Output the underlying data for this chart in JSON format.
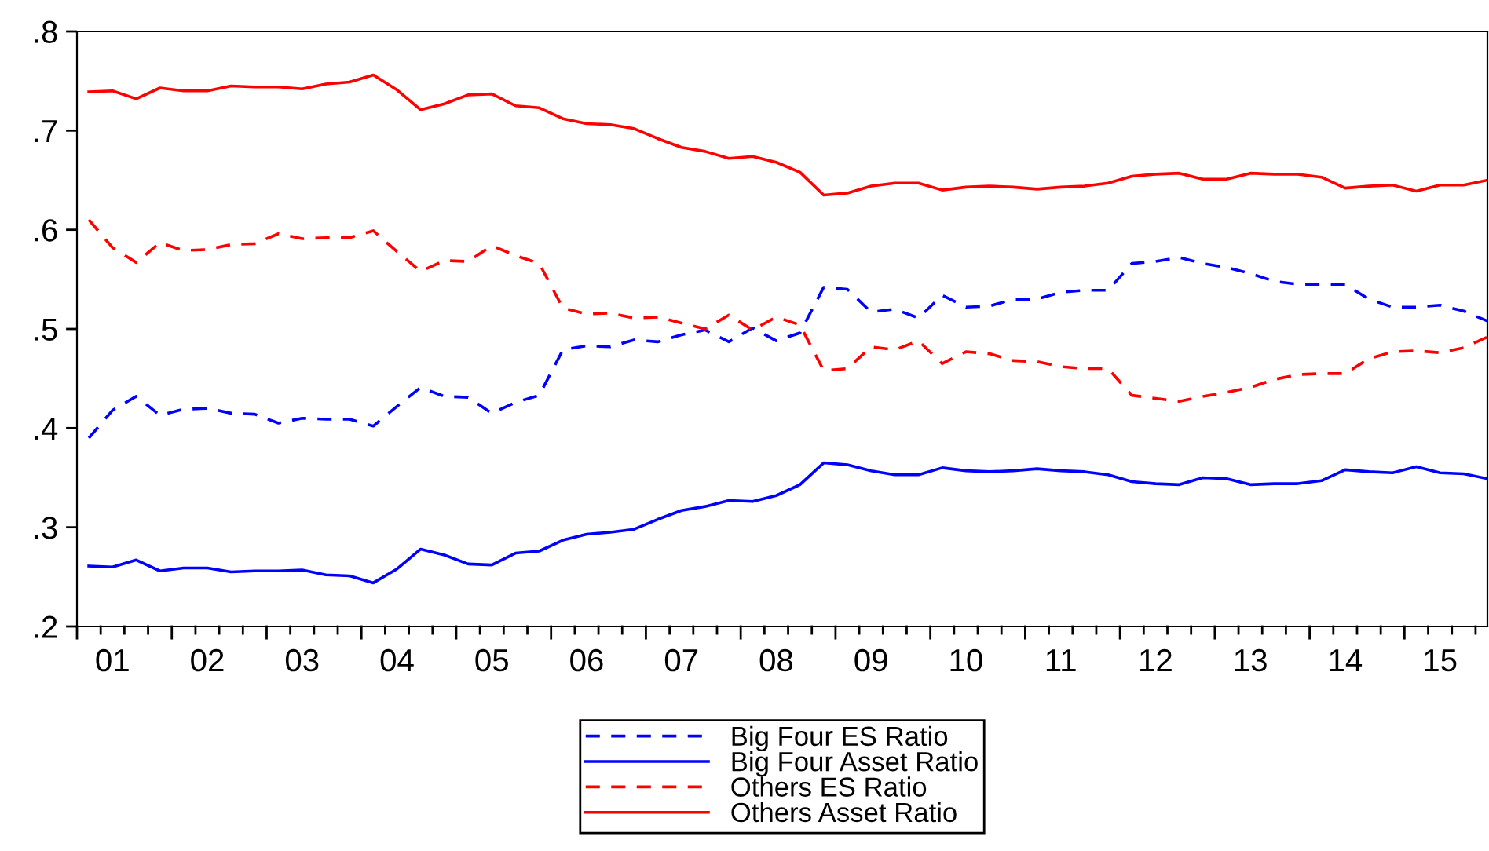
{
  "chart_data": {
    "type": "line",
    "categories": [
      null,
      "01",
      null,
      null,
      null,
      "02",
      null,
      null,
      null,
      "03",
      null,
      null,
      null,
      "04",
      null,
      null,
      null,
      "05",
      null,
      null,
      null,
      "06",
      null,
      null,
      null,
      "07",
      null,
      null,
      null,
      "08",
      null,
      null,
      null,
      "09",
      null,
      null,
      null,
      "10",
      null,
      null,
      null,
      "11",
      null,
      null,
      null,
      "12",
      null,
      null,
      null,
      "13",
      null,
      null,
      null,
      "14",
      null,
      null,
      null,
      "15",
      null,
      null
    ],
    "series": [
      {
        "name": "Big Four ES Ratio",
        "color": "#0000ff",
        "line_style": "dashed",
        "values": [
          0.39,
          0.418,
          0.432,
          0.413,
          0.419,
          0.42,
          0.415,
          0.414,
          0.405,
          0.41,
          0.409,
          0.409,
          0.402,
          0.422,
          0.441,
          0.432,
          0.431,
          0.415,
          0.426,
          0.433,
          0.479,
          0.483,
          0.482,
          0.489,
          0.487,
          0.494,
          0.499,
          0.487,
          0.501,
          0.488,
          0.496,
          0.542,
          0.54,
          0.517,
          0.52,
          0.511,
          0.534,
          0.522,
          0.523,
          0.53,
          0.53,
          0.537,
          0.539,
          0.539,
          0.566,
          0.568,
          0.572,
          0.566,
          0.562,
          0.556,
          0.548,
          0.545,
          0.545,
          0.545,
          0.53,
          0.522,
          0.522,
          0.524,
          0.518,
          0.508
        ]
      },
      {
        "name": "Big Four Asset Ratio",
        "color": "#0000ff",
        "line_style": "solid",
        "values": [
          0.261,
          0.26,
          0.267,
          0.256,
          0.259,
          0.259,
          0.255,
          0.256,
          0.256,
          0.257,
          0.252,
          0.251,
          0.244,
          0.258,
          0.278,
          0.272,
          0.263,
          0.262,
          0.274,
          0.276,
          0.287,
          0.293,
          0.295,
          0.298,
          0.308,
          0.317,
          0.321,
          0.327,
          0.326,
          0.332,
          0.343,
          0.365,
          0.363,
          0.357,
          0.353,
          0.353,
          0.36,
          0.357,
          0.356,
          0.357,
          0.359,
          0.357,
          0.356,
          0.353,
          0.346,
          0.344,
          0.343,
          0.35,
          0.349,
          0.343,
          0.344,
          0.344,
          0.347,
          0.358,
          0.356,
          0.355,
          0.361,
          0.355,
          0.354,
          0.349
        ]
      },
      {
        "name": "Others ES Ratio",
        "color": "#ff0000",
        "line_style": "dashed",
        "values": [
          0.61,
          0.582,
          0.567,
          0.587,
          0.579,
          0.58,
          0.585,
          0.586,
          0.596,
          0.591,
          0.592,
          0.592,
          0.599,
          0.578,
          0.558,
          0.569,
          0.568,
          0.584,
          0.574,
          0.566,
          0.521,
          0.515,
          0.516,
          0.511,
          0.512,
          0.506,
          0.5,
          0.514,
          0.499,
          0.512,
          0.504,
          0.458,
          0.46,
          0.482,
          0.479,
          0.488,
          0.465,
          0.477,
          0.475,
          0.468,
          0.467,
          0.462,
          0.46,
          0.46,
          0.433,
          0.43,
          0.427,
          0.432,
          0.436,
          0.441,
          0.449,
          0.454,
          0.455,
          0.455,
          0.47,
          0.477,
          0.478,
          0.476,
          0.481,
          0.492
        ]
      },
      {
        "name": "Others Asset Ratio",
        "color": "#ff0000",
        "line_style": "solid",
        "values": [
          0.739,
          0.74,
          0.732,
          0.743,
          0.74,
          0.74,
          0.745,
          0.744,
          0.744,
          0.742,
          0.747,
          0.749,
          0.756,
          0.741,
          0.721,
          0.727,
          0.736,
          0.737,
          0.725,
          0.723,
          0.712,
          0.707,
          0.706,
          0.702,
          0.692,
          0.683,
          0.679,
          0.672,
          0.674,
          0.668,
          0.658,
          0.635,
          0.637,
          0.644,
          0.647,
          0.647,
          0.64,
          0.643,
          0.644,
          0.643,
          0.641,
          0.643,
          0.644,
          0.647,
          0.654,
          0.656,
          0.657,
          0.651,
          0.651,
          0.657,
          0.656,
          0.656,
          0.653,
          0.642,
          0.644,
          0.645,
          0.639,
          0.645,
          0.645,
          0.65
        ]
      }
    ],
    "ylim": [
      0.2,
      0.8
    ],
    "yticks": [
      {
        "value": 0.2,
        "label": ".2"
      },
      {
        "value": 0.3,
        "label": ".3"
      },
      {
        "value": 0.4,
        "label": ".4"
      },
      {
        "value": 0.5,
        "label": ".5"
      },
      {
        "value": 0.6,
        "label": ".6"
      },
      {
        "value": 0.7,
        "label": ".7"
      },
      {
        "value": 0.8,
        "label": ".8"
      }
    ],
    "grid": false,
    "legend": "bottom",
    "marker": "none"
  }
}
